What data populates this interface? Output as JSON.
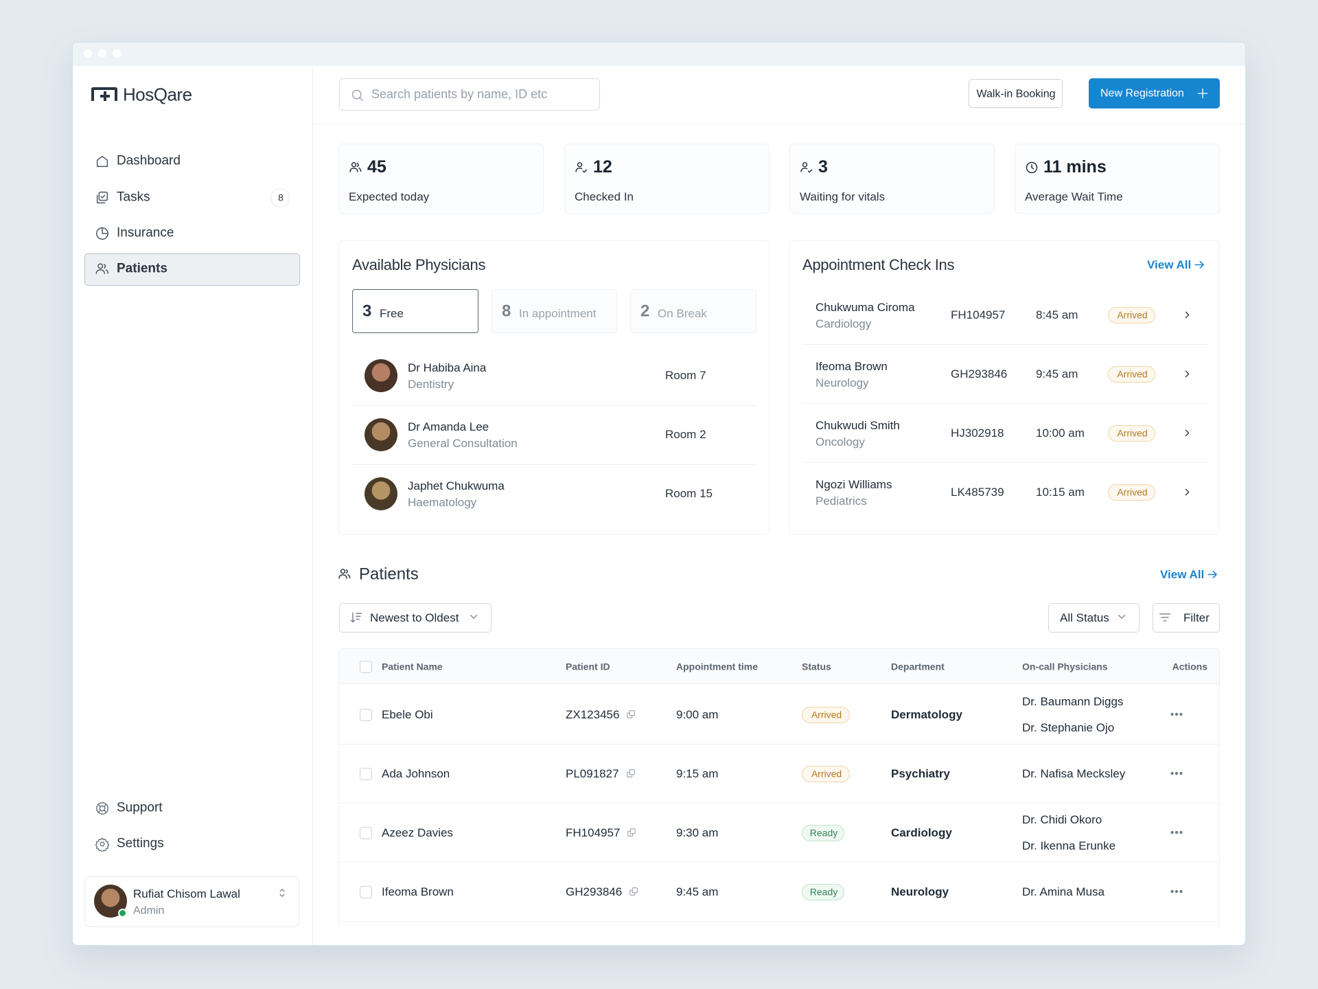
{
  "sidebar": {
    "brand": "HosQare",
    "nav": [
      {
        "label": "Dashboard"
      },
      {
        "label": "Tasks",
        "badge": 8
      },
      {
        "label": "Insurance"
      },
      {
        "label": "Patients"
      }
    ],
    "active_nav": 3,
    "footer_nav": [
      "Support",
      "Settings"
    ],
    "user": {
      "name": "Rufiat Chisom Lawal",
      "role": "Admin"
    }
  },
  "topbar": {
    "search_placeholder": "Search patients by name, ID etc",
    "walk_in": "Walk-in Booking",
    "new_registration": "New Registration"
  },
  "stats": [
    {
      "value": "45",
      "label": "Expected today"
    },
    {
      "value": "12",
      "label": "Checked In"
    },
    {
      "value": "3",
      "label": "Waiting for vitals"
    },
    {
      "value": "11 mins",
      "label": "Average Wait Time"
    }
  ],
  "physicians": {
    "title": "Available Physicians",
    "tabs": [
      {
        "count": 3,
        "label": "Free"
      },
      {
        "count": 8,
        "label": "In appointment"
      },
      {
        "count": 2,
        "label": "On Break"
      }
    ],
    "rows": [
      {
        "name": "Dr Habiba Aina",
        "specialty": "Dentistry",
        "room": "Room 7"
      },
      {
        "name": "Dr Amanda Lee",
        "specialty": "General Consultation",
        "room": "Room 2"
      },
      {
        "name": "Japhet Chukwuma",
        "specialty": "Haematology",
        "room": "Room 15"
      }
    ]
  },
  "checkins": {
    "title": "Appointment Check Ins",
    "view_all": "View All",
    "rows": [
      {
        "name": "Chukwuma Ciroma",
        "department": "Cardiology",
        "id": "FH104957",
        "time": "8:45 am",
        "status": "Arrived"
      },
      {
        "name": "Ifeoma Brown",
        "department": "Neurology",
        "id": "GH293846",
        "time": "9:45 am",
        "status": "Arrived"
      },
      {
        "name": "Chukwudi Smith",
        "department": "Oncology",
        "id": "HJ302918",
        "time": "10:00 am",
        "status": "Arrived"
      },
      {
        "name": "Ngozi Williams",
        "department": "Pediatrics",
        "id": "LK485739",
        "time": "10:15 am",
        "status": "Arrived"
      }
    ]
  },
  "patients": {
    "title": "Patients",
    "view_all": "View All",
    "sort": "Newest to Oldest",
    "status_filter": "All Status",
    "filter": "Filter",
    "columns": [
      "Patient Name",
      "Patient ID",
      "Appointment time",
      "Status",
      "Department",
      "On-call Physicians",
      "Actions"
    ],
    "rows": [
      {
        "name": "Ebele Obi",
        "id": "ZX123456",
        "time": "9:00 am",
        "status": "Arrived",
        "department": "Dermatology",
        "physicians": [
          "Dr. Baumann Diggs",
          "Dr. Stephanie Ojo"
        ]
      },
      {
        "name": "Ada Johnson",
        "id": "PL091827",
        "time": "9:15 am",
        "status": "Arrived",
        "department": "Psychiatry",
        "physicians": [
          "Dr. Nafisa Mecksley"
        ]
      },
      {
        "name": "Azeez Davies",
        "id": "FH104957",
        "time": "9:30 am",
        "status": "Ready",
        "department": "Cardiology",
        "physicians": [
          "Dr. Chidi Okoro",
          "Dr. Ikenna Erunke"
        ]
      },
      {
        "name": "Ifeoma Brown",
        "id": "GH293846",
        "time": "9:45 am",
        "status": "Ready",
        "department": "Neurology",
        "physicians": [
          "Dr. Amina Musa"
        ]
      }
    ]
  }
}
